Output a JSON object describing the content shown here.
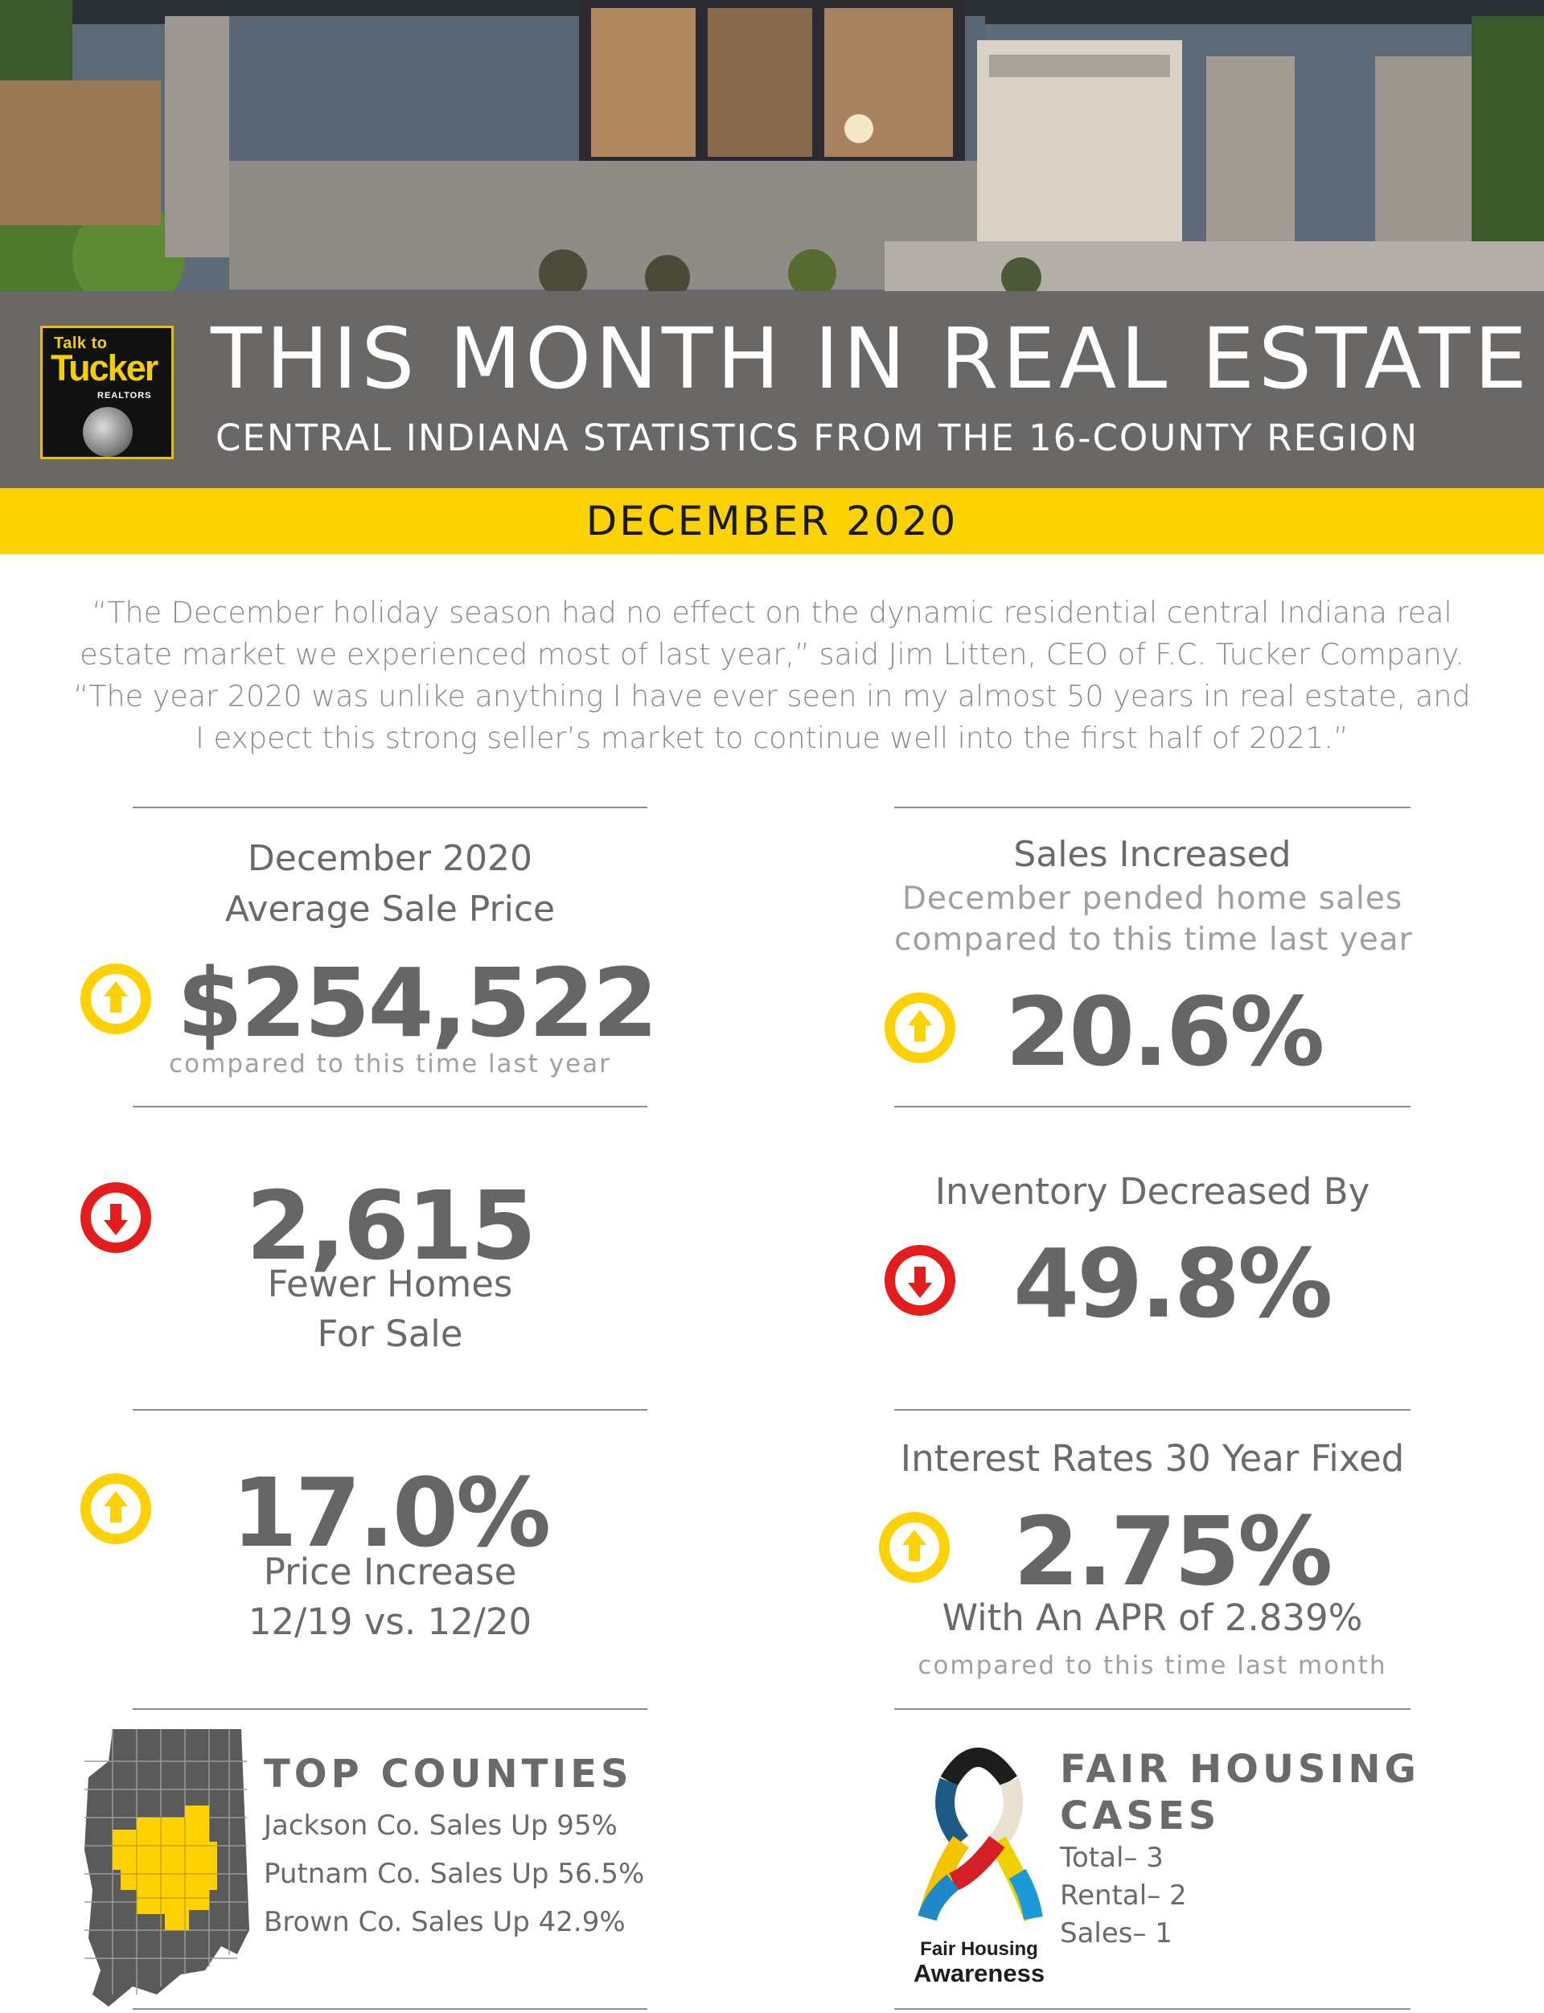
{
  "header": {
    "title": "THIS MONTH IN REAL ESTATE",
    "subtitle": "CENTRAL INDIANA STATISTICS FROM THE 16-COUNTY REGION",
    "date": "DECEMBER 2020"
  },
  "logo": {
    "line1": "Talk to",
    "line2": "Tucker",
    "line3": "REALTORS"
  },
  "quote": [
    "“The December holiday season had no effect on the dynamic residential central Indiana real",
    "estate market we experienced most of last year,” said Jim Litten, CEO of F.C. Tucker Company.",
    "“The year 2020 was unlike anything I have ever seen in my almost 50 years in real estate, and",
    "I expect this strong seller’s market to continue well into the first half of 2021.”"
  ],
  "stats": {
    "avg_price": {
      "label1": "December 2020",
      "label2": "Average Sale Price",
      "value": "$254,522",
      "note": "compared to this time last year",
      "direction": "up"
    },
    "sales": {
      "label1": "Sales Increased",
      "label2": "December pended home sales",
      "label3": "compared to this time last year",
      "value": "20.6%",
      "direction": "up"
    },
    "fewer_homes": {
      "value": "2,615",
      "label1": "Fewer Homes",
      "label2": "For Sale",
      "direction": "down"
    },
    "inventory": {
      "label": "Inventory Decreased By",
      "value": "49.8%",
      "direction": "down"
    },
    "price_increase": {
      "value": "17.0%",
      "label1": "Price Increase",
      "label2": "12/19 vs. 12/20",
      "direction": "up"
    },
    "interest": {
      "label": "Interest Rates 30 Year Fixed",
      "value": "2.75%",
      "apr": "With An APR of 2.839%",
      "note": "compared to this time last month",
      "direction": "up"
    }
  },
  "top_counties": {
    "title": "TOP COUNTIES",
    "items": [
      "Jackson Co. Sales Up 95%",
      "Putnam Co. Sales Up 56.5%",
      "Brown Co. Sales Up 42.9%"
    ]
  },
  "fair_housing": {
    "title_line1": "FAIR HOUSING",
    "title_line2": "CASES",
    "items": [
      "Total– 3",
      "Rental– 2",
      "Sales– 1"
    ],
    "ribbon_label1": "Fair Housing",
    "ribbon_label2": "Awareness"
  },
  "colors": {
    "yellow": "#fdd201",
    "red": "#e31c1c",
    "band_gray": "#6a6867",
    "text_gray": "#666666"
  }
}
